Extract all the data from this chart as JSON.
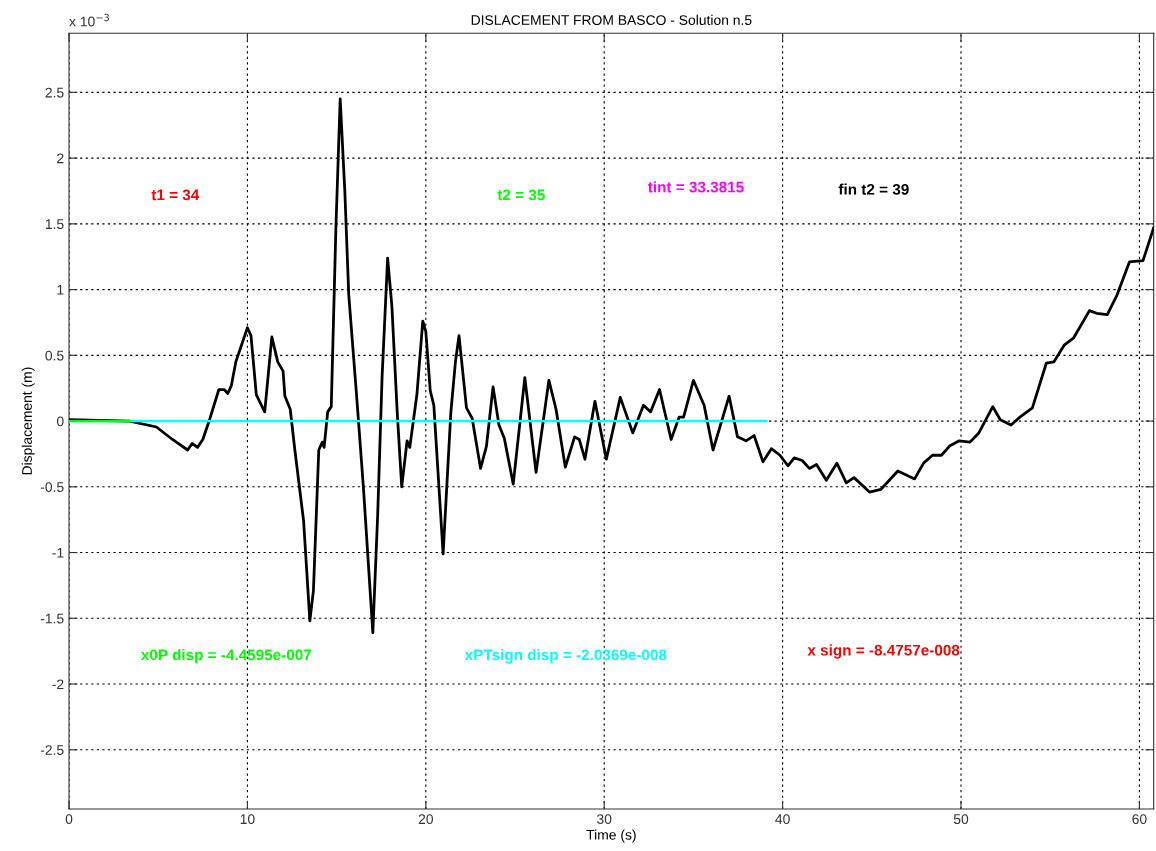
{
  "chart_data": {
    "type": "line",
    "title": "DISLACEMENT FROM BASCO - Solution n.5",
    "xlabel": "Time (s)",
    "ylabel": "Displacement (m)",
    "xlim": [
      0,
      60.8
    ],
    "ylim": [
      -2.95,
      2.95
    ],
    "xticks": [
      0,
      10,
      20,
      30,
      40,
      50,
      60
    ],
    "yticks": [
      -2.5,
      -2,
      -1.5,
      -1,
      -0.5,
      0,
      0.5,
      1,
      1.5,
      2,
      2.5
    ],
    "grid": true,
    "line_style": "solid",
    "series": [
      {
        "color": "#000000",
        "x": [
          0,
          3.4,
          4.9,
          5.8,
          6.65,
          6.9,
          7.2,
          7.5,
          7.9,
          8.4,
          8.7,
          8.9,
          9.1,
          9.35,
          10.0,
          10.2,
          10.5,
          10.97,
          11.37,
          11.7,
          12.0,
          12.1,
          12.4,
          12.66,
          13.15,
          13.5,
          13.7,
          14.0,
          14.2,
          14.3,
          14.5,
          14.7,
          14.96,
          15.2,
          15.46,
          15.68,
          16.1,
          16.5,
          17.03,
          17.3,
          17.55,
          17.86,
          18.1,
          18.4,
          18.65,
          18.95,
          19.1,
          19.5,
          19.83,
          20.0,
          20.25,
          20.45,
          20.97,
          21.4,
          21.66,
          21.86,
          22.28,
          22.6,
          23.07,
          23.4,
          23.77,
          24.1,
          24.4,
          24.9,
          25.55,
          26.18,
          26.9,
          27.3,
          27.82,
          28.34,
          28.6,
          28.92,
          29.48,
          30.12,
          30.9,
          31.6,
          32.2,
          32.6,
          33.1,
          33.75,
          34.2,
          34.45,
          35.0,
          35.6,
          36.1,
          37.0,
          37.47,
          37.95,
          38.4,
          38.9,
          39.37,
          39.85,
          40.3,
          40.65,
          41.1,
          41.5,
          41.9,
          42.45,
          43.04,
          43.57,
          44.0,
          44.87,
          45.5,
          46.46,
          47.4,
          47.9,
          48.4,
          48.9,
          49.36,
          49.9,
          50.5,
          51.0,
          51.78,
          52.2,
          52.8,
          53.3,
          54.0,
          54.78,
          55.2,
          55.8,
          56.3,
          57.2,
          57.6,
          58.2,
          58.75,
          59.44,
          60.2,
          60.8
        ],
        "values": [
          0.01,
          0,
          -0.045,
          -0.14,
          -0.22,
          -0.17,
          -0.2,
          -0.14,
          0.02,
          0.24,
          0.24,
          0.21,
          0.27,
          0.45,
          0.71,
          0.65,
          0.2,
          0.07,
          0.64,
          0.45,
          0.38,
          0.19,
          0.09,
          -0.22,
          -0.76,
          -1.52,
          -1.29,
          -0.22,
          -0.16,
          -0.2,
          0.07,
          0.11,
          1.47,
          2.45,
          1.75,
          0.96,
          0.23,
          -0.5,
          -1.61,
          -0.72,
          0.34,
          1.24,
          0.87,
          0.06,
          -0.5,
          -0.15,
          -0.2,
          0.2,
          0.76,
          0.68,
          0.23,
          0.12,
          -1.01,
          0.06,
          0.45,
          0.65,
          0.1,
          0.02,
          -0.36,
          -0.19,
          0.26,
          -0.03,
          -0.13,
          -0.48,
          0.33,
          -0.39,
          0.31,
          0.09,
          -0.35,
          -0.12,
          -0.14,
          -0.29,
          0.15,
          -0.29,
          0.18,
          -0.09,
          0.12,
          0.07,
          0.24,
          -0.14,
          0.03,
          0.03,
          0.31,
          0.12,
          -0.22,
          0.19,
          -0.12,
          -0.15,
          -0.11,
          -0.31,
          -0.21,
          -0.26,
          -0.34,
          -0.28,
          -0.3,
          -0.36,
          -0.33,
          -0.45,
          -0.32,
          -0.47,
          -0.43,
          -0.54,
          -0.52,
          -0.38,
          -0.44,
          -0.32,
          -0.26,
          -0.26,
          -0.19,
          -0.15,
          -0.16,
          -0.09,
          0.11,
          0.01,
          -0.03,
          0.03,
          0.1,
          0.44,
          0.45,
          0.58,
          0.63,
          0.84,
          0.82,
          0.81,
          0.96,
          1.21,
          1.22,
          1.47
        ]
      },
      {
        "color": "#00ff00",
        "x": [
          0,
          3.4
        ],
        "values": [
          0,
          0
        ]
      },
      {
        "color": "#00ffff",
        "x": [
          0,
          39.1
        ],
        "values": [
          0,
          0
        ]
      }
    ],
    "annotations": [
      "x 10$^{−3}$",
      "t1 = 34",
      "t2 = 35",
      "tint = 33.3815",
      "fin t2 = 39",
      "x0P disp = -4.4595e-007",
      "xPTsign disp = -2.0369e-008",
      "x sign = -8.4757e-008"
    ]
  }
}
